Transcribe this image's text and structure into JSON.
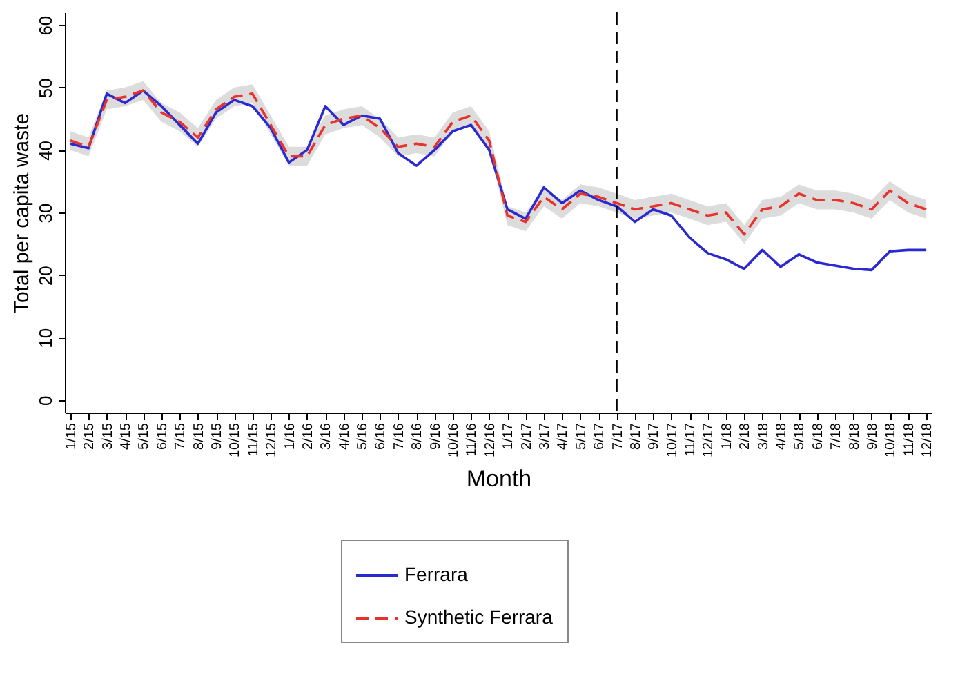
{
  "chart_data": {
    "type": "line",
    "xlabel": "Month",
    "ylabel": "Total per capita waste",
    "categories": [
      "1/15",
      "2/15",
      "3/15",
      "4/15",
      "5/15",
      "6/15",
      "7/15",
      "8/15",
      "9/15",
      "10/15",
      "11/15",
      "12/15",
      "1/16",
      "2/16",
      "3/16",
      "4/16",
      "5/16",
      "6/16",
      "7/16",
      "8/16",
      "9/16",
      "10/16",
      "11/16",
      "12/16",
      "1/17",
      "2/17",
      "3/17",
      "4/17",
      "5/17",
      "6/17",
      "7/17",
      "8/17",
      "9/17",
      "10/17",
      "11/17",
      "12/17",
      "1/18",
      "2/18",
      "3/18",
      "4/18",
      "5/18",
      "6/18",
      "7/18",
      "8/18",
      "9/18",
      "10/18",
      "11/18",
      "12/18"
    ],
    "series": [
      {
        "name": "Ferrara",
        "color": "#2a2ad0",
        "line_style": "solid",
        "values": [
          41,
          40.3,
          49,
          47.5,
          49.5,
          47,
          44,
          41,
          46,
          48,
          47,
          43.5,
          38,
          40,
          47,
          44,
          45.5,
          45,
          39.5,
          37.5,
          40,
          43,
          44,
          40,
          30.5,
          29,
          34,
          31.5,
          33.5,
          32,
          31,
          28.5,
          30.5,
          29.5,
          26,
          23.5,
          22.5,
          21,
          24,
          21.3,
          23.3,
          22,
          21.5,
          21,
          20.8,
          23.8,
          24,
          24
        ]
      },
      {
        "name": "Synthetic Ferrara",
        "color": "#e8322c",
        "line_style": "dashed",
        "values": [
          41.5,
          40.5,
          48,
          48.5,
          49.5,
          46,
          44.5,
          42,
          46.5,
          48.5,
          49,
          44,
          39,
          39,
          44,
          45,
          45.5,
          43.5,
          40.5,
          41,
          40.5,
          44.5,
          45.5,
          41.5,
          29.5,
          28.5,
          32.5,
          30.5,
          33,
          32.5,
          31.5,
          30.5,
          31,
          31.5,
          30.5,
          29.5,
          30,
          26.5,
          30.5,
          31,
          33,
          32,
          32,
          31.5,
          30.5,
          33.5,
          31.5,
          30.5
        ],
        "lower": [
          40,
          39,
          46.5,
          47,
          48,
          44.5,
          43,
          40.5,
          45,
          47,
          47.5,
          42.5,
          37.5,
          37.5,
          42.5,
          43.5,
          44,
          42,
          39,
          39.5,
          39,
          43,
          44,
          40,
          28,
          27,
          31,
          29,
          31.5,
          31,
          30,
          29,
          29.5,
          30,
          29,
          28,
          28.5,
          25,
          29,
          29.5,
          31.5,
          30.5,
          30.5,
          30,
          29,
          32,
          30,
          29
        ],
        "upper": [
          43,
          42,
          49.5,
          50,
          51,
          47.5,
          46,
          43.5,
          48,
          50,
          50.5,
          45.5,
          40.5,
          40.5,
          45.5,
          46.5,
          47,
          45,
          42,
          42.5,
          42,
          46,
          47,
          43,
          31,
          30,
          34,
          32,
          34.5,
          34,
          33,
          32,
          32.5,
          33,
          32,
          31,
          31.5,
          28,
          32,
          32.5,
          34.5,
          33.5,
          33.5,
          33,
          32,
          35,
          33,
          32
        ]
      }
    ],
    "ylim": [
      -2,
      62
    ],
    "yticks": [
      0,
      10,
      20,
      30,
      40,
      50,
      60
    ],
    "grid": false,
    "legend": "bottom",
    "ref_lines": [
      {
        "axis": "x",
        "value": "7/17",
        "color": "#000000",
        "line_style": "dashed"
      }
    ]
  }
}
